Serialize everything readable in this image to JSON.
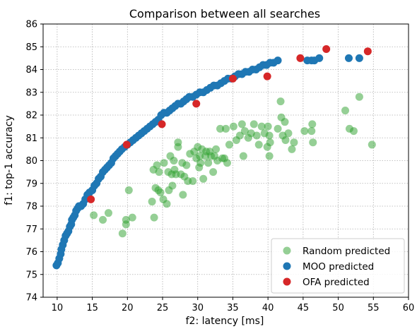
{
  "chart_data": {
    "type": "scatter",
    "title": "Comparison between all searches",
    "xlabel": "f2: latency [ms]",
    "ylabel": "f1: top-1 accuracy",
    "xlim": [
      8,
      60
    ],
    "ylim": [
      74,
      86
    ],
    "xticks": [
      10,
      15,
      20,
      25,
      30,
      35,
      40,
      45,
      50,
      55,
      60
    ],
    "yticks": [
      74,
      75,
      76,
      77,
      78,
      79,
      80,
      81,
      82,
      83,
      84,
      85,
      86
    ],
    "grid": true,
    "legend_position": "bottom-right",
    "series": [
      {
        "name": "Random predicted",
        "color": "#2ca02c",
        "opacity": 0.5,
        "points": [
          [
            15.2,
            77.6
          ],
          [
            16.5,
            77.4
          ],
          [
            17.3,
            77.7
          ],
          [
            19.3,
            76.8
          ],
          [
            19.8,
            77.4
          ],
          [
            19.8,
            77.2
          ],
          [
            20.2,
            78.7
          ],
          [
            20.7,
            77.5
          ],
          [
            23.5,
            78.2
          ],
          [
            23.8,
            77.5
          ],
          [
            24,
            78.8
          ],
          [
            23.7,
            79.6
          ],
          [
            24.2,
            79.8
          ],
          [
            24.4,
            78.7
          ],
          [
            24.5,
            79.5
          ],
          [
            24.7,
            78.6
          ],
          [
            25.1,
            78.3
          ],
          [
            25.2,
            79.9
          ],
          [
            25.6,
            78.1
          ],
          [
            25.8,
            79.5
          ],
          [
            25.9,
            78.7
          ],
          [
            26.3,
            79.4
          ],
          [
            26.4,
            78.9
          ],
          [
            26.1,
            80.2
          ],
          [
            26.7,
            79.6
          ],
          [
            26.6,
            80.0
          ],
          [
            26.9,
            79.4
          ],
          [
            27.2,
            80.6
          ],
          [
            27.2,
            80.8
          ],
          [
            27.6,
            79.4
          ],
          [
            27.8,
            79.9
          ],
          [
            27.9,
            78.5
          ],
          [
            28.1,
            79.3
          ],
          [
            28.4,
            79.8
          ],
          [
            28.6,
            79.1
          ],
          [
            28.9,
            80.3
          ],
          [
            29.3,
            79.1
          ],
          [
            29.5,
            80.4
          ],
          [
            29.8,
            80.1
          ],
          [
            30,
            80.6
          ],
          [
            30.2,
            79.7
          ],
          [
            30.3,
            80.2
          ],
          [
            30.4,
            79.9
          ],
          [
            30.6,
            80.5
          ],
          [
            30.8,
            79.2
          ],
          [
            31.1,
            80.2
          ],
          [
            31.2,
            80.4
          ],
          [
            31.5,
            79.9
          ],
          [
            31.7,
            80.4
          ],
          [
            31.9,
            80.2
          ],
          [
            32.2,
            79.5
          ],
          [
            32.4,
            80.2
          ],
          [
            32.6,
            80.5
          ],
          [
            32.8,
            80.0
          ],
          [
            33.2,
            81.4
          ],
          [
            33.5,
            80.1
          ],
          [
            33.8,
            80.1
          ],
          [
            34,
            81.4
          ],
          [
            34.2,
            79.9
          ],
          [
            34.5,
            80.7
          ],
          [
            35.1,
            81.5
          ],
          [
            35.5,
            80.9
          ],
          [
            36,
            81.1
          ],
          [
            36.3,
            81.6
          ],
          [
            36.5,
            80.2
          ],
          [
            36.7,
            81.3
          ],
          [
            37.2,
            81.0
          ],
          [
            37.6,
            81.2
          ],
          [
            38.0,
            81.6
          ],
          [
            38.4,
            81.1
          ],
          [
            38.7,
            80.7
          ],
          [
            39.1,
            81.5
          ],
          [
            39.5,
            81.2
          ],
          [
            39.9,
            80.6
          ],
          [
            40,
            81.5
          ],
          [
            40.2,
            81.1
          ],
          [
            40.3,
            80.8
          ],
          [
            40.2,
            80.2
          ],
          [
            41.4,
            81.4
          ],
          [
            41.8,
            82.6
          ],
          [
            41.9,
            81.9
          ],
          [
            42.1,
            81.1
          ],
          [
            42.4,
            81.7
          ],
          [
            42.5,
            80.9
          ],
          [
            42.9,
            81.2
          ],
          [
            43.4,
            80.5
          ],
          [
            43.7,
            80.8
          ],
          [
            45.2,
            81.3
          ],
          [
            46.2,
            81.3
          ],
          [
            46.3,
            81.6
          ],
          [
            46.4,
            80.8
          ],
          [
            51.0,
            82.2
          ],
          [
            51.6,
            81.4
          ],
          [
            52.2,
            81.3
          ],
          [
            53,
            82.8
          ],
          [
            54.8,
            80.7
          ]
        ]
      },
      {
        "name": "MOO predicted",
        "color": "#1f77b4",
        "opacity": 1,
        "points": [
          [
            9.9,
            75.4
          ],
          [
            10.1,
            75.5
          ],
          [
            10.3,
            75.7
          ],
          [
            10.5,
            75.9
          ],
          [
            10.6,
            76.1
          ],
          [
            10.8,
            76.3
          ],
          [
            11.0,
            76.5
          ],
          [
            11.2,
            76.7
          ],
          [
            11.4,
            76.8
          ],
          [
            11.6,
            76.9
          ],
          [
            11.8,
            77.1
          ],
          [
            12.0,
            77.2
          ],
          [
            12.1,
            77.4
          ],
          [
            12.3,
            77.5
          ],
          [
            12.5,
            77.6
          ],
          [
            12.7,
            77.8
          ],
          [
            12.9,
            77.9
          ],
          [
            13.1,
            78.0
          ],
          [
            13.4,
            78.0
          ],
          [
            13.7,
            78.1
          ],
          [
            14.0,
            78.3
          ],
          [
            14.3,
            78.5
          ],
          [
            14.6,
            78.6
          ],
          [
            15.0,
            78.7
          ],
          [
            15.3,
            78.9
          ],
          [
            15.6,
            79.0
          ],
          [
            15.9,
            79.2
          ],
          [
            16.2,
            79.3
          ],
          [
            16.5,
            79.5
          ],
          [
            16.8,
            79.6
          ],
          [
            17.1,
            79.7
          ],
          [
            17.4,
            79.8
          ],
          [
            17.7,
            79.9
          ],
          [
            18.0,
            80.1
          ],
          [
            18.3,
            80.2
          ],
          [
            18.6,
            80.3
          ],
          [
            18.9,
            80.4
          ],
          [
            19.2,
            80.5
          ],
          [
            19.6,
            80.6
          ],
          [
            20.0,
            80.7
          ],
          [
            20.4,
            80.8
          ],
          [
            20.8,
            80.9
          ],
          [
            21.2,
            81.0
          ],
          [
            21.6,
            81.1
          ],
          [
            22.0,
            81.2
          ],
          [
            22.4,
            81.3
          ],
          [
            22.8,
            81.4
          ],
          [
            23.2,
            81.5
          ],
          [
            23.6,
            81.6
          ],
          [
            24.0,
            81.7
          ],
          [
            24.4,
            81.8
          ],
          [
            24.8,
            82.0
          ],
          [
            25.2,
            82.1
          ],
          [
            25.6,
            82.1
          ],
          [
            26.0,
            82.2
          ],
          [
            26.4,
            82.3
          ],
          [
            26.8,
            82.4
          ],
          [
            27.2,
            82.5
          ],
          [
            27.6,
            82.5
          ],
          [
            28.0,
            82.6
          ],
          [
            28.4,
            82.7
          ],
          [
            28.8,
            82.8
          ],
          [
            29.3,
            82.8
          ],
          [
            29.8,
            82.9
          ],
          [
            30.3,
            83.0
          ],
          [
            30.8,
            83.0
          ],
          [
            31.3,
            83.1
          ],
          [
            31.8,
            83.2
          ],
          [
            32.3,
            83.3
          ],
          [
            32.8,
            83.3
          ],
          [
            33.3,
            83.4
          ],
          [
            33.8,
            83.5
          ],
          [
            34.3,
            83.6
          ],
          [
            34.8,
            83.6
          ],
          [
            35.3,
            83.7
          ],
          [
            35.8,
            83.8
          ],
          [
            36.3,
            83.8
          ],
          [
            36.8,
            83.9
          ],
          [
            37.3,
            83.9
          ],
          [
            37.8,
            84.0
          ],
          [
            38.3,
            84.0
          ],
          [
            38.8,
            84.1
          ],
          [
            39.3,
            84.2
          ],
          [
            39.8,
            84.2
          ],
          [
            40.3,
            84.3
          ],
          [
            40.8,
            84.3
          ],
          [
            41.4,
            84.4
          ],
          [
            45.6,
            84.4
          ],
          [
            46.2,
            84.4
          ],
          [
            46.6,
            84.4
          ],
          [
            47.3,
            84.5
          ],
          [
            51.5,
            84.5
          ],
          [
            53.0,
            84.5
          ]
        ]
      },
      {
        "name": "OFA predicted",
        "color": "#d62728",
        "opacity": 1,
        "points": [
          [
            14.8,
            78.3
          ],
          [
            19.9,
            80.7
          ],
          [
            24.9,
            81.6
          ],
          [
            29.8,
            82.5
          ],
          [
            35.0,
            83.6
          ],
          [
            39.9,
            83.7
          ],
          [
            44.6,
            84.5
          ],
          [
            48.3,
            84.9
          ],
          [
            54.2,
            84.8
          ]
        ]
      }
    ]
  }
}
